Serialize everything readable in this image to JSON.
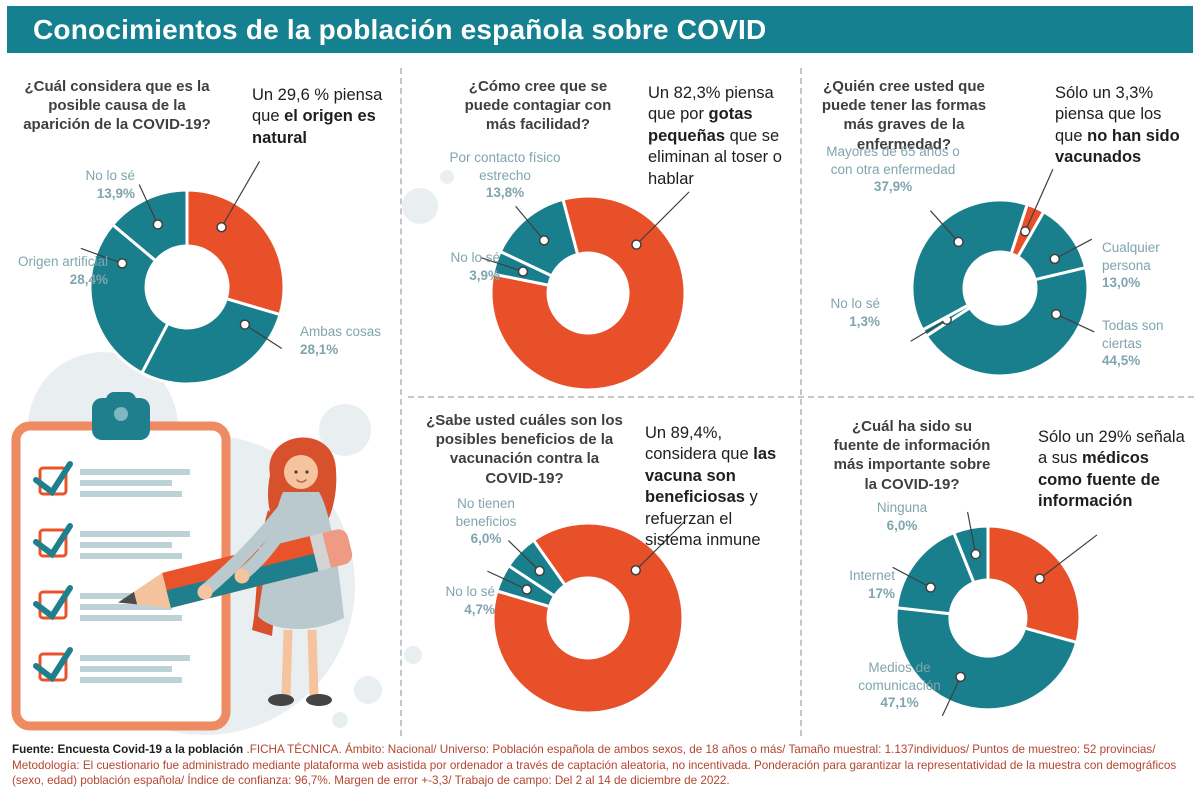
{
  "header": {
    "title": "Conocimientos de la población española sobre COVID"
  },
  "colors": {
    "teal": "#1a7f8d",
    "orange": "#e8502a"
  },
  "chart_data": [
    {
      "type": "donut",
      "question": "¿Cuál considera que es la posible causa de la aparición de la COVID-19?",
      "callout": {
        "pre": "Un 29,6 % piensa que ",
        "bold": "el origen es natural",
        "post": ""
      },
      "segments": [
        {
          "label": "El origen es natural",
          "value": 29.6,
          "color": "orange",
          "ma": 30,
          "ll": 48
        },
        {
          "label": "Ambas cosas",
          "value": 28.1,
          "color": "teal",
          "ma": 123
        },
        {
          "label": "Origen artificial",
          "value": 28.4,
          "color": "teal",
          "ma": 290
        },
        {
          "label": "No lo sé",
          "value": 13.9,
          "color": "teal"
        }
      ],
      "labels": [
        {
          "text": "No lo sé",
          "pct": "13,9%"
        },
        {
          "text": "Origen artificial",
          "pct": "28,4%"
        },
        {
          "text": "Ambas cosas",
          "pct": "28,1%"
        }
      ]
    },
    {
      "type": "donut",
      "question": "¿Cómo cree que se puede contagiar con más facilidad?",
      "callout": {
        "pre": "Un 82,3% piensa que por ",
        "bold": "gotas pequeñas",
        "post": " que se eliminan al toser o hablar"
      },
      "segments": [
        {
          "label": "Por gotas pequeñas que se eliminan al toser o hablar",
          "value": 82.3,
          "color": "orange",
          "ma": 45,
          "ll": 46
        },
        {
          "label": "No lo sé",
          "value": 3.9,
          "color": "teal"
        },
        {
          "label": "Por contacto físico estrecho",
          "value": 13.8,
          "color": "teal"
        }
      ],
      "labels": [
        {
          "text": "Por contacto físico estrecho",
          "pct": "13,8%"
        },
        {
          "text": "No lo sé",
          "pct": "3,9%"
        }
      ]
    },
    {
      "type": "donut",
      "question": "¿Quién cree usted que puede tener las formas más graves de la enfermedad?",
      "callout": {
        "pre": "Sólo un 3,3% piensa que los que ",
        "bold": "no han sido vacunados",
        "post": ""
      },
      "segments": [
        {
          "label": "Los que no han sido vacunados",
          "value": 3.3,
          "color": "orange",
          "ma": 24,
          "ll": 42
        },
        {
          "label": "Cualquier persona",
          "value": 13.0,
          "color": "teal",
          "ma": 62
        },
        {
          "label": "Todas son ciertas",
          "value": 44.5,
          "color": "teal",
          "ma": 115
        },
        {
          "label": "No lo sé",
          "value": 1.3,
          "color": "teal"
        },
        {
          "label": "Mayores de 65 años o con otra enfermedad",
          "value": 37.9,
          "color": "teal",
          "ma": 318
        }
      ],
      "labels": [
        {
          "text": "Mayores de 65 años o con otra enfermedad",
          "pct": "37,9%"
        },
        {
          "text": "Cualquier persona",
          "pct": "13,0%"
        },
        {
          "text": "No lo sé",
          "pct": "1,3%"
        },
        {
          "text": "Todas son ciertas",
          "pct": "44,5%"
        }
      ]
    },
    {
      "type": "donut",
      "question": "¿Sabe usted cuáles son los posibles beneficios de la vacunación contra la COVID-19?",
      "callout": {
        "pre": "Un 89,4%, considera que ",
        "bold": "las vacuna son beneficiosas",
        "post": " y refuerzan el sistema inmune"
      },
      "segments": [
        {
          "label": "Las vacunas son beneficiosas",
          "value": 89.4,
          "color": "orange",
          "ma": 45,
          "ll": 42
        },
        {
          "label": "No lo sé",
          "value": 4.7,
          "color": "teal"
        },
        {
          "label": "No tienen beneficios",
          "value": 6.0,
          "color": "teal"
        }
      ],
      "labels": [
        {
          "text": "No tienen beneficios",
          "pct": "6,0%"
        },
        {
          "text": "No lo sé",
          "pct": "4,7%"
        }
      ]
    },
    {
      "type": "donut",
      "question": "¿Cuál ha sido su fuente de información más importante sobre la COVID-19?",
      "callout": {
        "pre": "Sólo un 29% señala a sus ",
        "bold": "médicos como fuente de información",
        "post": ""
      },
      "segments": [
        {
          "label": "Médicos",
          "value": 29.0,
          "color": "orange",
          "ll": 45
        },
        {
          "label": "Medios de comunicación",
          "value": 47.1,
          "color": "teal",
          "ma": 205
        },
        {
          "label": "Internet",
          "value": 17.0,
          "color": "teal",
          "ma": 298
        },
        {
          "label": "Ninguna",
          "value": 6.0,
          "color": "teal"
        }
      ],
      "labels": [
        {
          "text": "Ninguna",
          "pct": "6,0%"
        },
        {
          "text": "Internet",
          "pct": "17%"
        },
        {
          "text": "Medios de comunicación",
          "pct": "47,1%"
        }
      ]
    }
  ],
  "footer": {
    "source": "Fuente: Encuesta Covid-19 a la población",
    "text": " .FICHA TÉCNICA. Ámbito: Nacional/ Universo: Población española de ambos sexos, de 18 años o más/ Tamaño muestral: 1.137individuos/ Puntos de muestreo: 52 provincias/ Metodología: El cuestionario fue administrado mediante plataforma web asistida por ordenador a través de captación aleatoria, no incentivada. Ponderación para garantizar la representatividad de la muestra con demográficos (sexo, edad) población española/ Índice de confianza: 96,7%. Margen de error +-3,3/ Trabajo de campo: Del 2 al 14 de diciembre de 2022."
  }
}
